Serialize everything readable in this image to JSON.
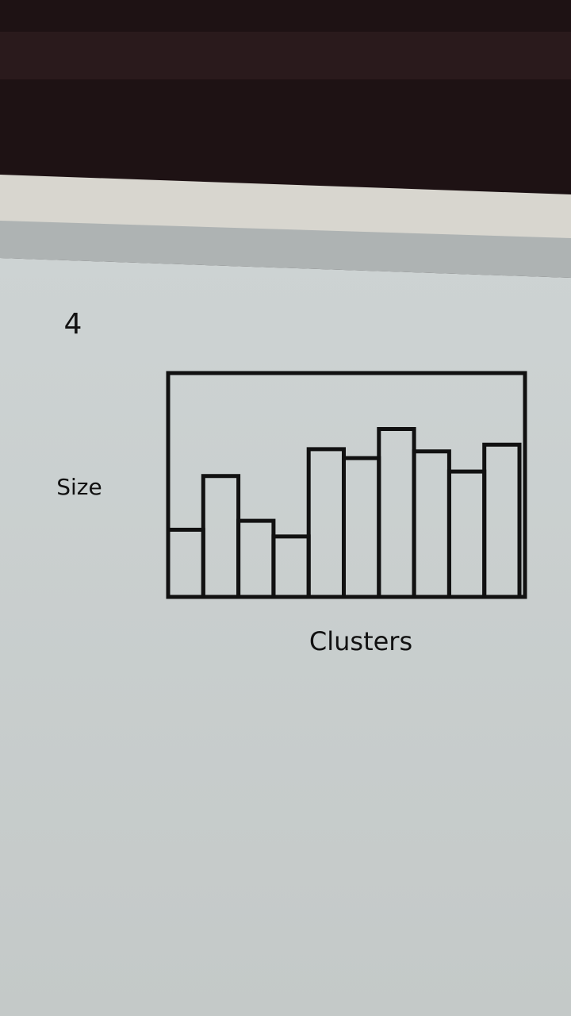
{
  "chart_data": {
    "type": "bar",
    "annotation": "4",
    "ylabel": "Size",
    "xlabel": "Clusters",
    "categories": [
      null,
      null,
      null,
      null,
      null,
      null,
      null,
      null,
      null,
      null
    ],
    "values": [
      30,
      54,
      34,
      27,
      66,
      62,
      75,
      65,
      56,
      68
    ],
    "color": "#111111",
    "ylim": [
      0,
      100
    ]
  }
}
